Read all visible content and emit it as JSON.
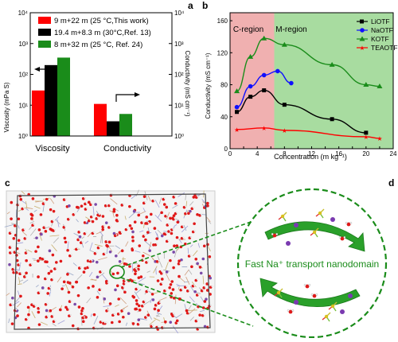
{
  "panels": {
    "a": {
      "letter": "a"
    },
    "b": {
      "letter": "b"
    },
    "c": {
      "letter": "c"
    },
    "d": {
      "letter": "d"
    }
  },
  "colors": {
    "red": "#ff0000",
    "black": "#000000",
    "green": "#1a8c1a",
    "region_c": "#f0b0b0",
    "region_m": "#a8dca0",
    "blue": "#1010ff",
    "kotf": "#1a8c1a",
    "teaotf": "#ff0000",
    "dash": "#1a8c1a"
  },
  "chart_data": [
    {
      "type": "bar",
      "panel": "a",
      "categories": [
        "Viscosity",
        "Conductivity"
      ],
      "series": [
        {
          "name": "9 m+22 m (25 °C,This work)",
          "color": "#ff0000",
          "values": [
            30,
            11
          ]
        },
        {
          "name": "19.4 m+8.3 m (30°C,Ref. 13)",
          "color": "#000000",
          "values": [
            200,
            3
          ]
        },
        {
          "name": "8 m+32 m (25 °C, Ref. 24)",
          "color": "#1a8c1a",
          "values": [
            350,
            5.2
          ]
        }
      ],
      "ylabel": "Viscosity (mPa S)",
      "y2label": "Conductivity (mS cm⁻¹)",
      "ylim": [
        1,
        10000
      ],
      "y2lim": [
        1,
        10000
      ],
      "yscale": "log",
      "yticks": [
        "10⁰",
        "10¹",
        "10²",
        "10³",
        "10⁴"
      ],
      "y2ticks": [
        "10⁰",
        "10¹",
        "10²",
        "10³",
        "10⁴"
      ],
      "legend": "top"
    },
    {
      "type": "line",
      "panel": "b",
      "xlabel": "Concentration (m kg⁻¹)",
      "ylabel": "Conductivity (mS cm⁻¹)",
      "xlim": [
        0,
        24
      ],
      "ylim": [
        0,
        170
      ],
      "xticks": [
        0,
        2,
        4,
        6,
        8,
        10,
        12,
        14,
        16,
        18,
        20,
        22,
        24
      ],
      "yticks": [
        0,
        40,
        80,
        120,
        160
      ],
      "regions": [
        {
          "label": "C-region",
          "from": 0,
          "to": 6.5
        },
        {
          "label": "M-region",
          "from": 6.5,
          "to": 24
        }
      ],
      "series": [
        {
          "name": "LiOTF",
          "color": "#000000",
          "marker": "square",
          "x": [
            1,
            3,
            5,
            8,
            15,
            20
          ],
          "y": [
            46,
            65,
            73,
            55,
            37,
            20
          ]
        },
        {
          "name": "NaOTF",
          "color": "#1010ff",
          "marker": "circle",
          "x": [
            1,
            3,
            5,
            7,
            9
          ],
          "y": [
            52,
            78,
            92,
            97,
            82
          ]
        },
        {
          "name": "KOTF",
          "color": "#1a8c1a",
          "marker": "triangle",
          "x": [
            1,
            3,
            5,
            8,
            15,
            20,
            22
          ],
          "y": [
            72,
            115,
            138,
            130,
            105,
            80,
            78
          ]
        },
        {
          "name": "TEAOTF",
          "color": "#ff0000",
          "marker": "star",
          "x": [
            1,
            5,
            8,
            20,
            22
          ],
          "y": [
            24,
            26,
            23,
            15,
            13
          ]
        }
      ],
      "legend": "top-right"
    }
  ],
  "panel_d": {
    "title": "Fast Na⁺ transport nanodomain"
  }
}
